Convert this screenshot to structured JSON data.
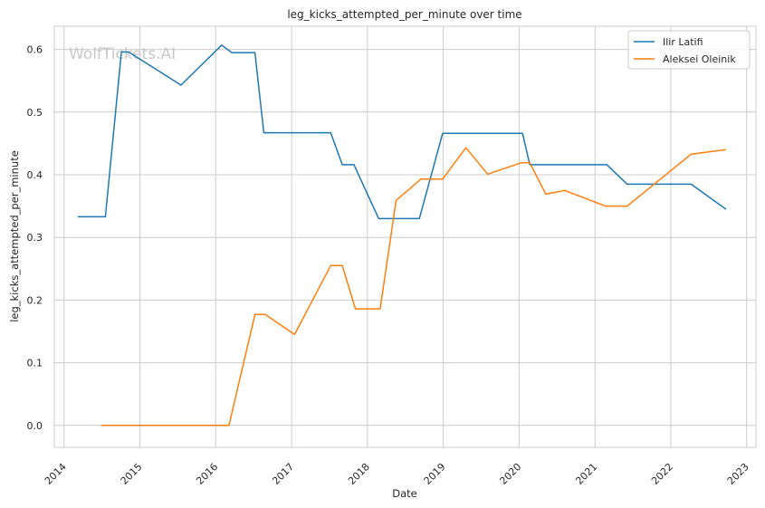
{
  "chart_data": {
    "type": "line",
    "title": "leg_kicks_attempted_per_minute over time",
    "xlabel": "Date",
    "ylabel": "leg_kicks_attempted_per_minute",
    "watermark": "WolfTickets.AI",
    "xlim": [
      "2013-11-15",
      "2023-02-15"
    ],
    "ylim": [
      -0.035,
      0.637
    ],
    "x_ticks": [
      "2014",
      "2015",
      "2016",
      "2017",
      "2018",
      "2019",
      "2020",
      "2021",
      "2022",
      "2023"
    ],
    "y_ticks": [
      "0.0",
      "0.1",
      "0.2",
      "0.3",
      "0.4",
      "0.5",
      "0.6"
    ],
    "grid": true,
    "legend_position": "top-right",
    "series": [
      {
        "name": "Ilir Latifi",
        "color": "#1f77b4",
        "points": [
          [
            "2014-03-08",
            0.333
          ],
          [
            "2014-07-19",
            0.333
          ],
          [
            "2014-10-04",
            0.596
          ],
          [
            "2014-11-08",
            0.596
          ],
          [
            "2015-07-18",
            0.543
          ],
          [
            "2016-01-30",
            0.607
          ],
          [
            "2016-03-19",
            0.595
          ],
          [
            "2016-07-08",
            0.595
          ],
          [
            "2016-08-20",
            0.467
          ],
          [
            "2017-07-08",
            0.467
          ],
          [
            "2017-09-02",
            0.416
          ],
          [
            "2017-10-28",
            0.416
          ],
          [
            "2018-02-24",
            0.33
          ],
          [
            "2018-09-08",
            0.33
          ],
          [
            "2018-12-29",
            0.466
          ],
          [
            "2019-06-15",
            0.466
          ],
          [
            "2020-01-18",
            0.466
          ],
          [
            "2020-02-22",
            0.416
          ],
          [
            "2021-02-27",
            0.416
          ],
          [
            "2021-06-05",
            0.385
          ],
          [
            "2022-04-09",
            0.385
          ],
          [
            "2022-09-24",
            0.345
          ]
        ]
      },
      {
        "name": "Aleksei Oleinik",
        "color": "#ff7f0e",
        "points": [
          [
            "2014-06-28",
            0.0
          ],
          [
            "2015-05-16",
            0.0
          ],
          [
            "2016-03-05",
            0.0
          ],
          [
            "2016-07-08",
            0.177
          ],
          [
            "2016-08-27",
            0.177
          ],
          [
            "2017-01-15",
            0.145
          ],
          [
            "2017-07-08",
            0.255
          ],
          [
            "2017-09-02",
            0.255
          ],
          [
            "2017-11-04",
            0.186
          ],
          [
            "2018-03-03",
            0.186
          ],
          [
            "2018-05-19",
            0.359
          ],
          [
            "2018-09-15",
            0.393
          ],
          [
            "2018-12-29",
            0.393
          ],
          [
            "2019-04-20",
            0.443
          ],
          [
            "2019-08-03",
            0.401
          ],
          [
            "2020-01-10",
            0.419
          ],
          [
            "2020-02-22",
            0.419
          ],
          [
            "2020-05-09",
            0.369
          ],
          [
            "2020-08-08",
            0.375
          ],
          [
            "2021-02-20",
            0.35
          ],
          [
            "2021-06-05",
            0.35
          ],
          [
            "2022-04-09",
            0.433
          ],
          [
            "2022-09-24",
            0.44
          ]
        ]
      }
    ]
  }
}
